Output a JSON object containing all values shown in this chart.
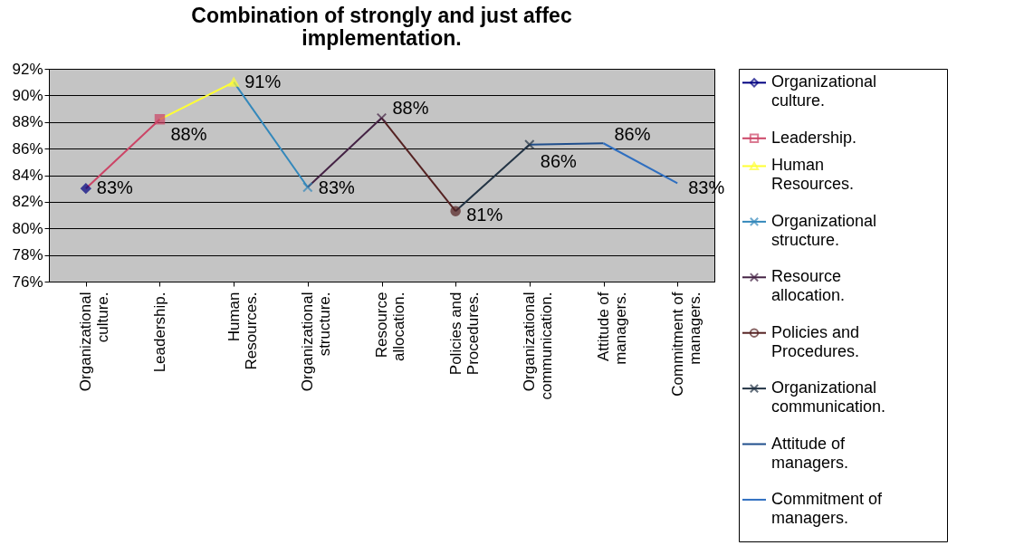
{
  "chart_data": {
    "type": "line",
    "title": "Combination of strongly and just affec\nimplementation.",
    "categories": [
      "Organizational culture.",
      "Leadership.",
      "Human Resources.",
      "Organizational structure.",
      "Resource allocation.",
      "Policies and Procedures.",
      "Organizational communication.",
      "Attitude of managers.",
      "Commitment of managers."
    ],
    "series": [
      {
        "name": "Organizational culture.",
        "color": "#000080",
        "marker": "diamond",
        "values": [
          83.0,
          null,
          null,
          null,
          null,
          null,
          null,
          null,
          null
        ],
        "value_labels": [
          "83%",
          null,
          null,
          null,
          null,
          null,
          null,
          null,
          null
        ]
      },
      {
        "name": "Leadership.",
        "color": "#cc4466",
        "marker": "square",
        "values": [
          83.0,
          88.2,
          null,
          null,
          null,
          null,
          null,
          null,
          null
        ],
        "value_labels": [
          null,
          "88%",
          null,
          null,
          null,
          null,
          null,
          null,
          null
        ]
      },
      {
        "name": "Human Resources.",
        "color": "#ffff33",
        "marker": "triangle",
        "values": [
          null,
          88.2,
          91.0,
          null,
          null,
          null,
          null,
          null,
          null
        ],
        "value_labels": [
          null,
          null,
          "91%",
          null,
          null,
          null,
          null,
          null,
          null
        ]
      },
      {
        "name": "Organizational structure.",
        "color": "#3388bb",
        "marker": "cross",
        "values": [
          null,
          null,
          91.0,
          83.1,
          null,
          null,
          null,
          null,
          null
        ],
        "value_labels": [
          null,
          null,
          null,
          "83%",
          null,
          null,
          null,
          null,
          null
        ]
      },
      {
        "name": "Resource allocation.",
        "color": "#442244",
        "marker": "cross",
        "values": [
          null,
          null,
          null,
          83.1,
          88.3,
          null,
          null,
          null,
          null
        ],
        "value_labels": [
          null,
          null,
          null,
          null,
          "88%",
          null,
          null,
          null,
          null
        ]
      },
      {
        "name": "Policies and Procedures.",
        "color": "#552222",
        "marker": "circle",
        "values": [
          null,
          null,
          null,
          null,
          88.3,
          81.3,
          null,
          null,
          null
        ],
        "value_labels": [
          null,
          null,
          null,
          null,
          null,
          "81%",
          null,
          null,
          null
        ]
      },
      {
        "name": "Organizational communication.",
        "color": "#223344",
        "marker": "cross",
        "values": [
          null,
          null,
          null,
          null,
          null,
          81.3,
          86.3,
          null,
          null
        ],
        "value_labels": [
          null,
          null,
          null,
          null,
          null,
          null,
          "86%",
          null,
          null
        ]
      },
      {
        "name": "Attitude of managers.",
        "color": "#1f4e8c",
        "values": [
          null,
          null,
          null,
          null,
          null,
          null,
          86.3,
          86.4,
          null
        ],
        "value_labels": [
          null,
          null,
          null,
          null,
          null,
          null,
          null,
          "86%",
          null
        ]
      },
      {
        "name": "Commitment of managers.",
        "color": "#2f6fc0",
        "values": [
          null,
          null,
          null,
          null,
          null,
          null,
          null,
          86.4,
          83.4
        ],
        "value_labels": [
          null,
          null,
          null,
          null,
          null,
          null,
          null,
          null,
          "83%"
        ]
      }
    ],
    "ylim": [
      76,
      92
    ],
    "yticks": [
      {
        "value": 76,
        "label": "76%"
      },
      {
        "value": 78,
        "label": "78%"
      },
      {
        "value": 80,
        "label": "80%"
      },
      {
        "value": 82,
        "label": "82%"
      },
      {
        "value": 84,
        "label": "84%"
      },
      {
        "value": 86,
        "label": "86%"
      },
      {
        "value": 88,
        "label": "88%"
      },
      {
        "value": 90,
        "label": "90%"
      },
      {
        "value": 92,
        "label": "92%"
      }
    ],
    "grid": "y",
    "legend": "right"
  }
}
